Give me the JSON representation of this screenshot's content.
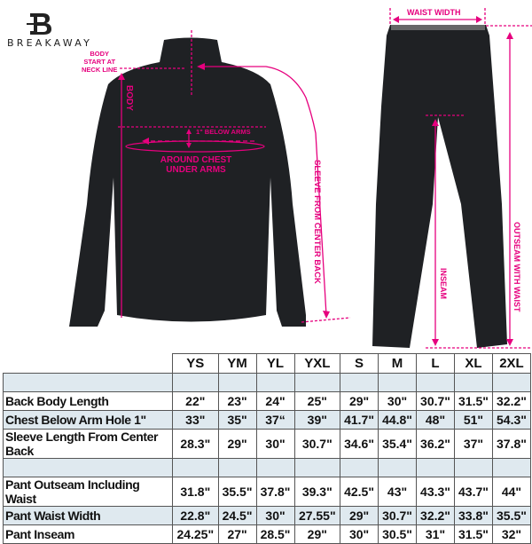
{
  "brand": {
    "name": "BREAKAWAY",
    "logo_letter": "B"
  },
  "annotations": {
    "body_start": [
      "BODY",
      "START AT",
      "NECK LINE"
    ],
    "body": "BODY",
    "below_arms": "1\" BELOW ARMS",
    "chest": [
      "AROUND CHEST",
      "UNDER ARMS"
    ],
    "sleeve": "SLEEVE FROM CENTER BACK",
    "waist_width": "WAIST WIDTH",
    "inseam": "INSEAM",
    "outseam": "OUTSEAM WITH WAIST"
  },
  "colors": {
    "accent": "#e6007e",
    "garment": "#1f2124",
    "row_shade": "#dfe9ef"
  },
  "size_table": {
    "sizes": [
      "YS",
      "YM",
      "YL",
      "YXL",
      "S",
      "M",
      "L",
      "XL",
      "2XL"
    ],
    "rows": [
      {
        "label": "",
        "values": [
          "",
          "",
          "",
          "",
          "",
          "",
          "",
          "",
          ""
        ],
        "shade": true
      },
      {
        "label": "Back Body Length",
        "values": [
          "22\"",
          "23\"",
          "24\"",
          "25\"",
          "29\"",
          "30\"",
          "30.7\"",
          "31.5\"",
          "32.2\""
        ],
        "shade": false
      },
      {
        "label": "Chest Below Arm Hole 1\"",
        "values": [
          "33\"",
          "35\"",
          "37“",
          "39\"",
          "41.7\"",
          "44.8\"",
          "48\"",
          "51\"",
          "54.3\""
        ],
        "shade": true
      },
      {
        "label": "Sleeve Length From Center Back",
        "values": [
          "28.3\"",
          "29\"",
          "30\"",
          "30.7\"",
          "34.6\"",
          "35.4\"",
          "36.2\"",
          "37\"",
          "37.8\""
        ],
        "shade": false
      },
      {
        "label": "",
        "values": [
          "",
          "",
          "",
          "",
          "",
          "",
          "",
          "",
          ""
        ],
        "shade": true
      },
      {
        "label": "Pant Outseam Including Waist",
        "values": [
          "31.8\"",
          "35.5\"",
          "37.8\"",
          "39.3\"",
          "42.5\"",
          "43\"",
          "43.3\"",
          "43.7\"",
          "44\""
        ],
        "shade": false
      },
      {
        "label": "Pant Waist Width",
        "values": [
          "22.8\"",
          "24.5\"",
          "30\"",
          "27.55\"",
          "29\"",
          "30.7\"",
          "32.2\"",
          "33.8\"",
          "35.5\""
        ],
        "shade": true
      },
      {
        "label": "Pant Inseam",
        "values": [
          "24.25\"",
          "27\"",
          "28.5\"",
          "29\"",
          "30\"",
          "30.5\"",
          "31\"",
          "31.5\"",
          "32\""
        ],
        "shade": false
      }
    ]
  }
}
